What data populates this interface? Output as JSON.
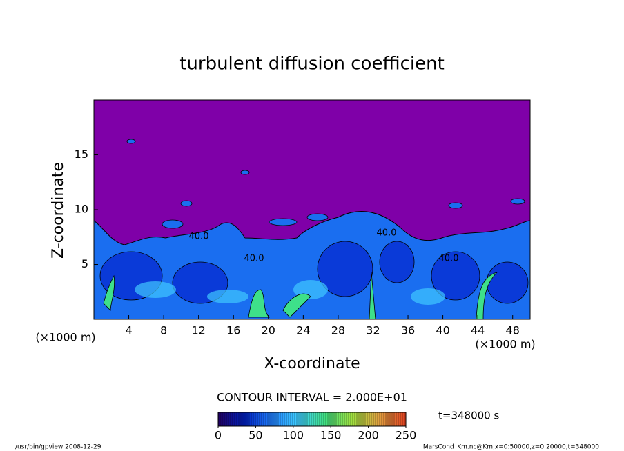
{
  "chart_data": {
    "type": "heatmap",
    "title": "turbulent diffusion coefficient",
    "x_label": "X-coordinate",
    "y_label": "Z-coordinate",
    "x_unit": "(×1000 m)",
    "y_unit": "(×1000 m)",
    "xlim": [
      0,
      50
    ],
    "xticks": [
      4,
      8,
      12,
      16,
      20,
      24,
      28,
      32,
      36,
      40,
      44,
      48
    ],
    "ylim": [
      0,
      20
    ],
    "yticks": [
      5,
      10,
      15
    ],
    "background_color": "#7f00a8",
    "contour_interval_text": "CONTOUR INTERVAL = 2.000E+01",
    "contour_labels": [
      "40.0",
      "40.0",
      "40.0",
      "40.0"
    ],
    "colorbar": {
      "lim": [
        0,
        250
      ],
      "ticks": [
        0,
        50,
        100,
        150,
        200,
        250
      ],
      "colors": [
        "#200060",
        "#0020c0",
        "#2080ff",
        "#40d0ff",
        "#40e080",
        "#a0e040",
        "#e0a040",
        "#e04020"
      ]
    },
    "time_label": "t=348000 s",
    "footer_left": "/usr/bin/gpview   2008-12-29",
    "footer_right": "MarsCond_Km.nc@Km,x=0:50000,z=0:20000,t=348000"
  }
}
